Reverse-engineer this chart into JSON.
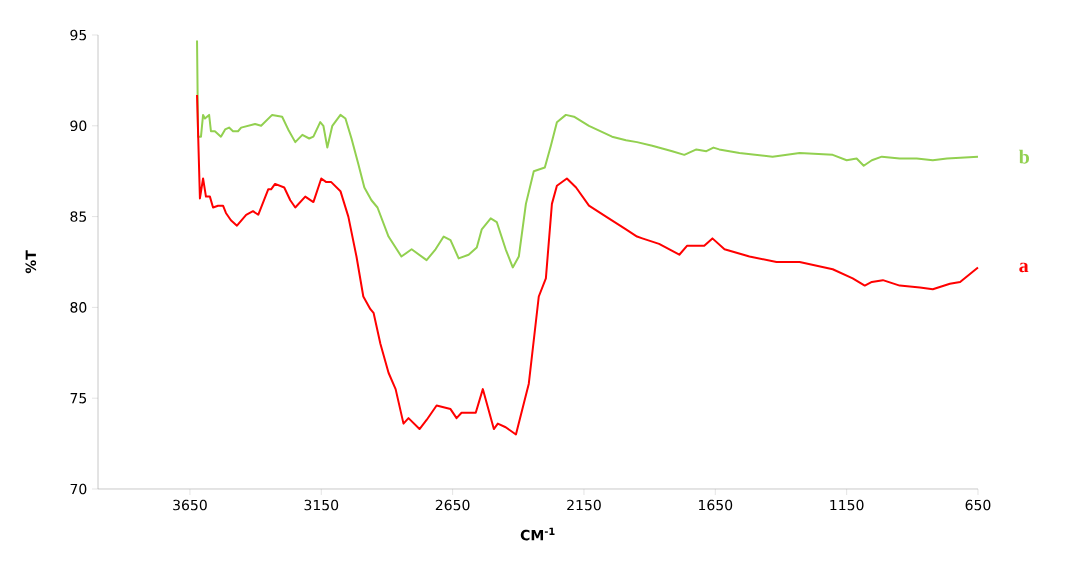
{
  "chart_data": {
    "type": "line",
    "xlabel": "CM$^{-1}$",
    "ylabel": "%T",
    "xlim": [
      4000,
      650
    ],
    "ylim": [
      70,
      95
    ],
    "xticks": [
      3650,
      3150,
      2650,
      2150,
      1650,
      1150,
      650
    ],
    "yticks": [
      70,
      75,
      80,
      85,
      90,
      95
    ],
    "marker": "none",
    "line_style": "solid",
    "series": [
      {
        "name": "b",
        "color": "#92d050",
        "x": [
          3623,
          3619,
          3608,
          3600,
          3593,
          3577,
          3570,
          3555,
          3532,
          3516,
          3501,
          3486,
          3467,
          3455,
          3402,
          3379,
          3337,
          3299,
          3276,
          3249,
          3222,
          3196,
          3180,
          3154,
          3142,
          3127,
          3108,
          3077,
          3058,
          3035,
          3009,
          2986,
          2959,
          2936,
          2894,
          2845,
          2806,
          2749,
          2715,
          2684,
          2658,
          2627,
          2589,
          2558,
          2539,
          2505,
          2482,
          2448,
          2421,
          2398,
          2371,
          2341,
          2299,
          2276,
          2253,
          2219,
          2188,
          2131,
          2043,
          1990,
          1948,
          1890,
          1814,
          1768,
          1722,
          1684,
          1657,
          1635,
          1558,
          1432,
          1329,
          1203,
          1150,
          1112,
          1085,
          1054,
          1016,
          948,
          883,
          822,
          768,
          650
        ],
        "values": [
          94.7,
          89.4,
          89.4,
          90.6,
          90.4,
          90.6,
          89.7,
          89.7,
          89.4,
          89.8,
          89.9,
          89.7,
          89.7,
          89.9,
          90.1,
          90.0,
          90.6,
          90.5,
          89.8,
          89.1,
          89.5,
          89.3,
          89.4,
          90.2,
          90.0,
          88.8,
          90.0,
          90.6,
          90.4,
          89.3,
          87.9,
          86.6,
          85.9,
          85.5,
          83.9,
          82.8,
          83.2,
          82.6,
          83.2,
          83.9,
          83.7,
          82.7,
          82.9,
          83.3,
          84.3,
          84.9,
          84.7,
          83.2,
          82.2,
          82.8,
          85.7,
          87.5,
          87.7,
          88.9,
          90.2,
          90.6,
          90.5,
          90.0,
          89.4,
          89.2,
          89.1,
          88.9,
          88.6,
          88.4,
          88.7,
          88.6,
          88.8,
          88.7,
          88.5,
          88.3,
          88.5,
          88.4,
          88.1,
          88.2,
          87.8,
          88.1,
          88.3,
          88.2,
          88.2,
          88.1,
          88.2,
          88.3
        ]
      },
      {
        "name": "a",
        "color": "#ff0000",
        "x": [
          3623,
          3612,
          3600,
          3589,
          3574,
          3562,
          3543,
          3524,
          3513,
          3494,
          3471,
          3436,
          3410,
          3390,
          3352,
          3341,
          3326,
          3291,
          3268,
          3249,
          3211,
          3180,
          3150,
          3131,
          3112,
          3077,
          3047,
          3016,
          2990,
          2963,
          2951,
          2925,
          2894,
          2867,
          2837,
          2818,
          2776,
          2749,
          2711,
          2658,
          2635,
          2616,
          2562,
          2535,
          2493,
          2478,
          2448,
          2409,
          2360,
          2322,
          2295,
          2272,
          2253,
          2215,
          2180,
          2131,
          2066,
          1990,
          1948,
          1928,
          1864,
          1787,
          1757,
          1692,
          1661,
          1615,
          1520,
          1417,
          1329,
          1203,
          1127,
          1081,
          1054,
          1012,
          948,
          871,
          822,
          757,
          718,
          650
        ],
        "values": [
          91.7,
          86.0,
          87.1,
          86.1,
          86.1,
          85.5,
          85.6,
          85.6,
          85.2,
          84.8,
          84.5,
          85.1,
          85.3,
          85.1,
          86.5,
          86.5,
          86.8,
          86.6,
          85.9,
          85.5,
          86.1,
          85.8,
          87.1,
          86.9,
          86.9,
          86.4,
          85.0,
          82.8,
          80.6,
          79.9,
          79.7,
          78.0,
          76.4,
          75.5,
          73.6,
          73.9,
          73.3,
          73.8,
          74.6,
          74.4,
          73.9,
          74.2,
          74.2,
          75.5,
          73.3,
          73.6,
          73.4,
          73.0,
          75.8,
          80.6,
          81.6,
          85.7,
          86.7,
          87.1,
          86.6,
          85.6,
          85.0,
          84.3,
          83.9,
          83.8,
          83.5,
          82.9,
          83.4,
          83.4,
          83.8,
          83.2,
          82.8,
          82.5,
          82.5,
          82.1,
          81.6,
          81.2,
          81.4,
          81.5,
          81.2,
          81.1,
          81.0,
          81.3,
          81.4,
          82.2
        ]
      }
    ]
  }
}
